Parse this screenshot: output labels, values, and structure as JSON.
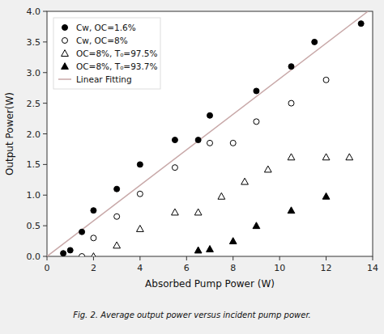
{
  "chart_data": {
    "type": "scatter",
    "xlabel": "Absorbed Pump Power (W)",
    "ylabel": "Output Power(W)",
    "caption": "Fig. 2. Average output power versus incident pump power.",
    "xlim": [
      0,
      14
    ],
    "ylim": [
      0,
      4.0
    ],
    "xticks": [
      0,
      2,
      4,
      6,
      8,
      10,
      12,
      14
    ],
    "yticks": [
      {
        "value": 0.0,
        "label": "0.0"
      },
      0.5,
      {
        "value": 1.0,
        "label": "1.0"
      },
      1.5,
      {
        "value": 2.0,
        "label": "2.0"
      },
      2.5,
      {
        "value": 3.0,
        "label": "3.0"
      },
      3.5,
      {
        "value": 4.0,
        "label": "4.0"
      }
    ],
    "legend": "upper left",
    "series": [
      {
        "name": "Cw, OC=1.6%",
        "marker": "circle",
        "color": "black",
        "x": [
          0.7,
          1.0,
          1.5,
          2.0,
          3.0,
          4.0,
          5.5,
          6.5,
          7.0,
          9.0,
          10.5,
          11.5,
          13.5
        ],
        "values": [
          0.05,
          0.1,
          0.4,
          0.75,
          1.1,
          1.5,
          1.9,
          1.9,
          2.3,
          2.7,
          3.1,
          3.5,
          3.8
        ]
      },
      {
        "name": "Cw, OC=8%",
        "marker": "circle-open",
        "color": "black",
        "x": [
          1.5,
          2.0,
          3.0,
          4.0,
          5.5,
          7.0,
          8.0,
          9.0,
          10.5,
          12.0
        ],
        "values": [
          0.0,
          0.3,
          0.65,
          1.02,
          1.45,
          1.85,
          1.85,
          2.2,
          2.5,
          2.88
        ]
      },
      {
        "name": "OC=8%, T₀=97.5%",
        "marker": "triangle-open",
        "color": "black",
        "x": [
          2.0,
          3.0,
          4.0,
          5.5,
          6.5,
          7.5,
          8.5,
          9.5,
          10.5,
          12.0,
          13.0
        ],
        "values": [
          0.0,
          0.18,
          0.45,
          0.72,
          0.72,
          0.98,
          1.22,
          1.42,
          1.62,
          1.62,
          1.62
        ]
      },
      {
        "name": "OC=8%, T₀=93.7%",
        "marker": "triangle",
        "color": "black",
        "x": [
          6.5,
          7.0,
          8.0,
          9.0,
          10.5,
          12.0
        ],
        "values": [
          0.1,
          0.12,
          0.25,
          0.5,
          0.75,
          0.98
        ]
      },
      {
        "name": "Linear Fitting",
        "type": "line",
        "color": "#c8a8a8",
        "x": [
          0.0,
          13.8
        ],
        "values": [
          0.0,
          4.0
        ]
      }
    ]
  }
}
